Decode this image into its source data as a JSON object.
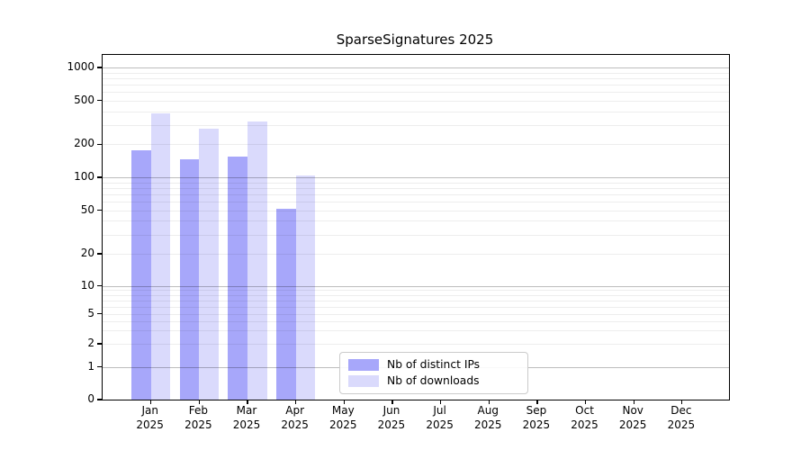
{
  "chart_data": {
    "type": "bar",
    "title": "SparseSignatures 2025",
    "scale": "symlog",
    "grid": true,
    "categories": [
      "Jan",
      "Feb",
      "Mar",
      "Apr",
      "May",
      "Jun",
      "Jul",
      "Aug",
      "Sep",
      "Oct",
      "Nov",
      "Dec"
    ],
    "year_label": "2025",
    "series": [
      {
        "name": "Nb of distinct IPs",
        "color": "#a7a7fa",
        "values": [
          175,
          145,
          155,
          52,
          0,
          0,
          0,
          0,
          0,
          0,
          0,
          0
        ]
      },
      {
        "name": "Nb of downloads",
        "color": "#dadafc",
        "values": [
          385,
          275,
          320,
          103,
          0,
          0,
          0,
          0,
          0,
          0,
          0,
          0
        ]
      }
    ],
    "yticks": [
      0,
      1,
      2,
      5,
      10,
      20,
      50,
      100,
      200,
      500,
      1000
    ],
    "ylim": [
      0,
      1200
    ],
    "xlabel": "",
    "ylabel": "",
    "legend_position": "lower center"
  }
}
